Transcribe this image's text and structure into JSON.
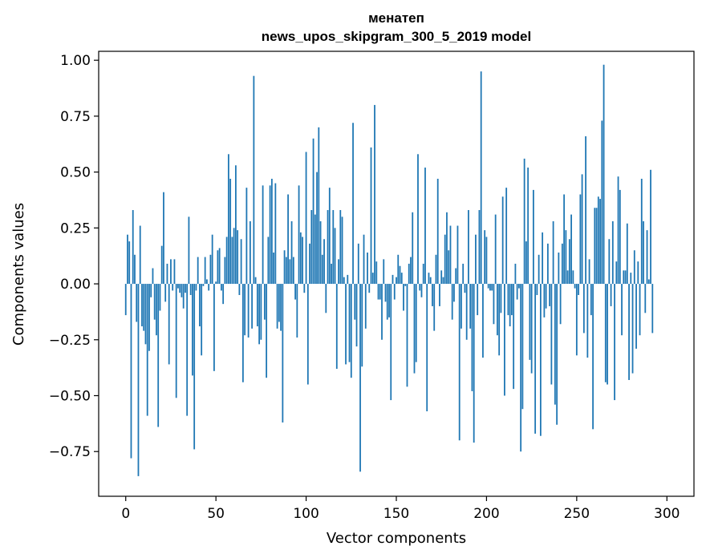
{
  "chart_data": {
    "type": "bar",
    "title": "менатеп",
    "subtitle": "news_upos_skipgram_300_5_2019 model",
    "xlabel": "Vector components",
    "ylabel": "Components values",
    "xlim": [
      -15,
      315
    ],
    "ylim": [
      -0.95,
      1.04
    ],
    "xticks": [
      0,
      50,
      100,
      150,
      200,
      250,
      300
    ],
    "yticks": [
      -0.75,
      -0.5,
      -0.25,
      0.0,
      0.25,
      0.5,
      0.75,
      1.0
    ],
    "xtick_labels": [
      "0",
      "50",
      "100",
      "150",
      "200",
      "250",
      "300"
    ],
    "ytick_labels": [
      "−0.75",
      "−0.50",
      "−0.25",
      "0.00",
      "0.25",
      "0.50",
      "0.75",
      "1.00"
    ],
    "grid": false,
    "bar_color": "#1f77b4",
    "values": [
      -0.14,
      0.22,
      0.19,
      -0.78,
      0.33,
      0.13,
      -0.17,
      -0.86,
      0.26,
      -0.19,
      -0.21,
      -0.27,
      -0.59,
      -0.3,
      -0.06,
      0.07,
      -0.16,
      -0.23,
      -0.64,
      -0.12,
      0.17,
      0.41,
      -0.08,
      0.09,
      -0.36,
      0.11,
      -0.03,
      0.11,
      -0.51,
      -0.02,
      -0.04,
      -0.06,
      -0.11,
      -0.04,
      -0.59,
      0.3,
      -0.05,
      -0.41,
      -0.74,
      -0.03,
      0.12,
      -0.19,
      -0.32,
      -0.01,
      0.12,
      0.02,
      -0.03,
      0.13,
      0.22,
      -0.39,
      0.01,
      0.15,
      0.16,
      -0.03,
      -0.09,
      0.12,
      0.21,
      0.58,
      0.47,
      0.21,
      0.25,
      0.53,
      0.24,
      -0.05,
      0.2,
      -0.44,
      -0.23,
      0.43,
      -0.24,
      0.28,
      -0.2,
      0.93,
      0.03,
      -0.19,
      -0.27,
      -0.25,
      0.44,
      -0.16,
      -0.42,
      0.21,
      0.44,
      0.47,
      0.14,
      0.45,
      -0.2,
      -0.17,
      -0.21,
      -0.62,
      0.15,
      0.12,
      0.4,
      0.11,
      0.28,
      0.12,
      -0.07,
      -0.24,
      0.44,
      0.23,
      0.21,
      -0.04,
      0.59,
      -0.45,
      0.18,
      0.33,
      0.65,
      0.31,
      0.5,
      0.7,
      0.28,
      0.13,
      0.2,
      -0.13,
      0.33,
      0.43,
      0.09,
      0.33,
      0.25,
      -0.38,
      0.11,
      0.33,
      0.3,
      0.03,
      -0.36,
      0.04,
      -0.35,
      -0.42,
      0.72,
      -0.16,
      -0.28,
      0.18,
      -0.84,
      -0.37,
      0.22,
      -0.2,
      0.14,
      -0.04,
      0.61,
      0.05,
      0.8,
      0.1,
      -0.07,
      -0.07,
      -0.25,
      0.11,
      -0.08,
      -0.16,
      -0.15,
      -0.52,
      0.04,
      -0.07,
      0.03,
      0.13,
      0.08,
      0.05,
      -0.12,
      -0.01,
      -0.46,
      0.09,
      0.12,
      0.32,
      -0.4,
      -0.35,
      0.58,
      -0.03,
      -0.06,
      0.09,
      0.52,
      -0.57,
      0.05,
      0.03,
      -0.1,
      -0.21,
      0.13,
      0.47,
      -0.1,
      0.06,
      0.03,
      0.22,
      0.32,
      0.15,
      0.26,
      -0.16,
      -0.08,
      0.07,
      0.26,
      -0.7,
      -0.2,
      0.09,
      -0.04,
      -0.25,
      0.33,
      -0.2,
      -0.48,
      -0.71,
      0.22,
      -0.14,
      0.33,
      0.95,
      -0.33,
      0.24,
      0.21,
      -0.02,
      -0.03,
      -0.03,
      -0.18,
      0.31,
      -0.23,
      -0.32,
      -0.13,
      0.39,
      -0.5,
      0.43,
      -0.14,
      -0.19,
      -0.14,
      -0.47,
      0.09,
      -0.07,
      -0.02,
      -0.75,
      -0.56,
      0.56,
      0.19,
      0.52,
      -0.34,
      -0.4,
      0.42,
      -0.67,
      -0.05,
      0.13,
      -0.68,
      0.23,
      -0.15,
      -0.11,
      0.18,
      -0.1,
      -0.45,
      0.28,
      -0.54,
      -0.63,
      0.14,
      -0.18,
      0.18,
      0.4,
      0.24,
      0.06,
      0.2,
      0.31,
      0.06,
      -0.02,
      -0.32,
      -0.05,
      0.4,
      0.49,
      -0.22,
      0.66,
      -0.33,
      0.11,
      -0.14,
      -0.65,
      0.34,
      0.34,
      0.39,
      0.38,
      0.73,
      0.98,
      -0.44,
      -0.45,
      0.2,
      -0.1,
      0.28,
      -0.52,
      0.1,
      0.48,
      0.42,
      -0.23,
      0.06,
      0.06,
      0.27,
      -0.43,
      0.05,
      -0.4,
      0.15,
      -0.29,
      0.1,
      -0.23,
      0.47,
      0.28,
      -0.13,
      0.24,
      0.02,
      0.51,
      -0.22
    ]
  }
}
